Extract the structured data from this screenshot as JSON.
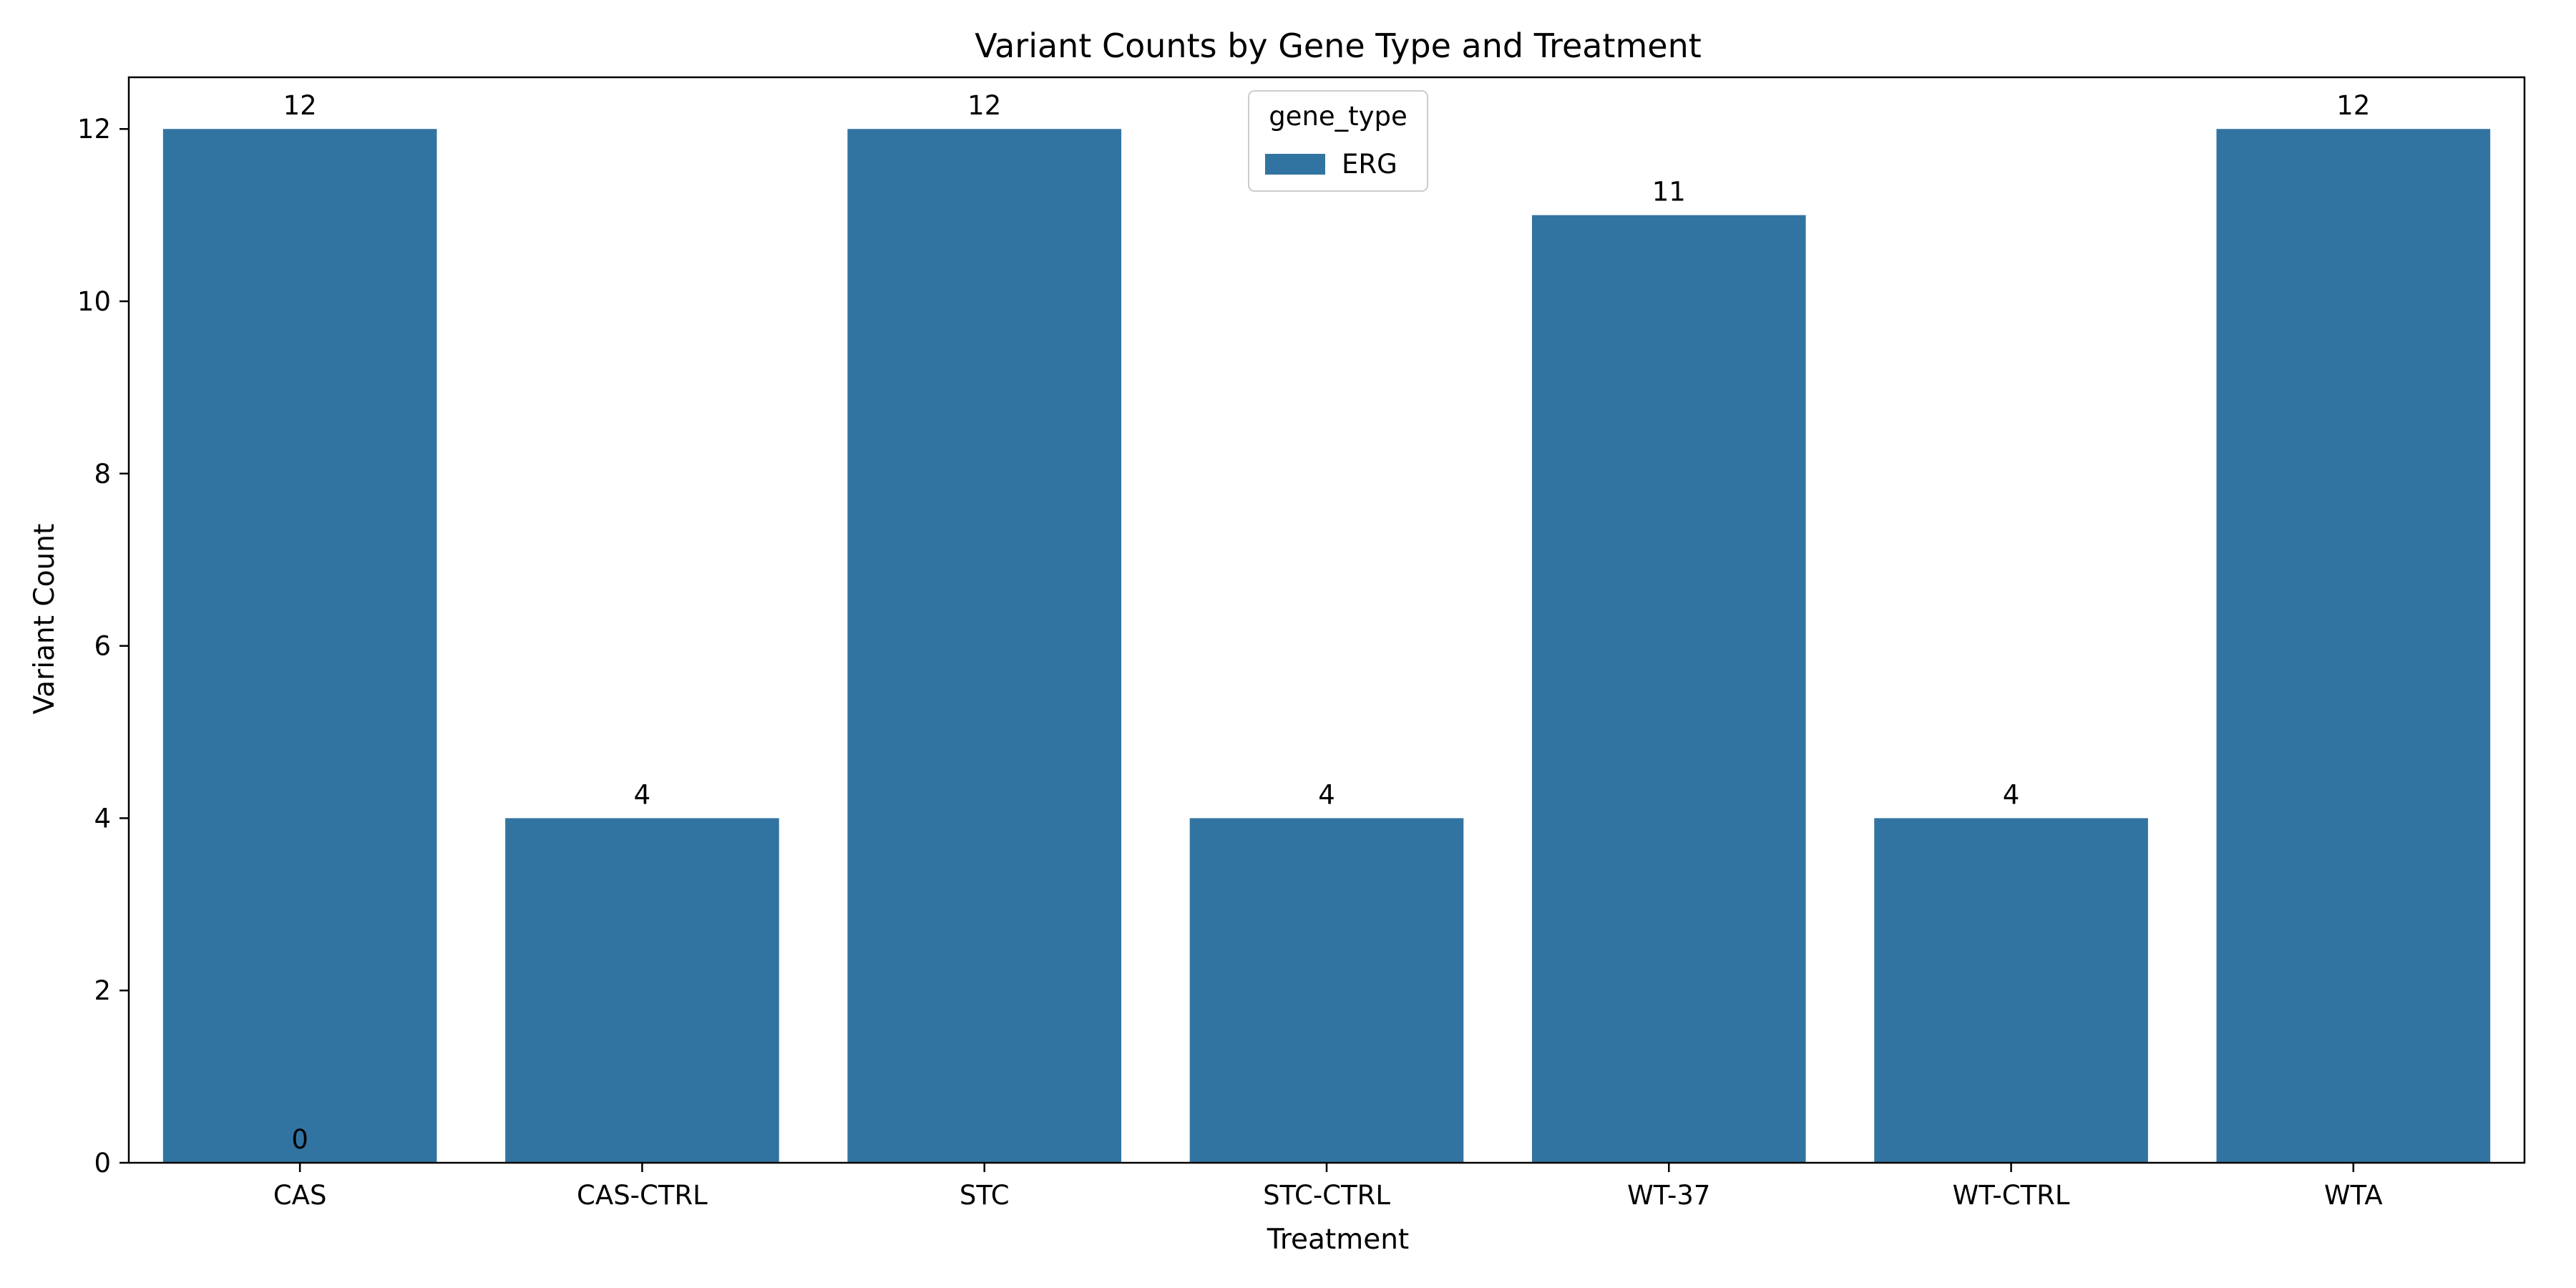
{
  "chart_data": {
    "type": "bar",
    "title": "Variant Counts by Gene Type and Treatment",
    "xlabel": "Treatment",
    "ylabel": "Variant Count",
    "categories": [
      "CAS",
      "CAS-CTRL",
      "STC",
      "STC-CTRL",
      "WT-37",
      "WT-CTRL",
      "WTA"
    ],
    "series": [
      {
        "name": "ERG",
        "values": [
          12,
          4,
          12,
          4,
          11,
          4,
          12
        ]
      }
    ],
    "bar_labels": [
      "12",
      "4",
      "12",
      "4",
      "11",
      "4",
      "12"
    ],
    "extra_annotations": [
      {
        "category": "CAS",
        "value": 0,
        "text": "0"
      }
    ],
    "ylim": [
      0,
      12.6
    ],
    "yticks": [
      0,
      2,
      4,
      6,
      8,
      10,
      12
    ],
    "legend": {
      "title": "gene_type",
      "position": "top-center"
    },
    "grid": false,
    "colors": {
      "ERG": "#3274a1"
    }
  }
}
